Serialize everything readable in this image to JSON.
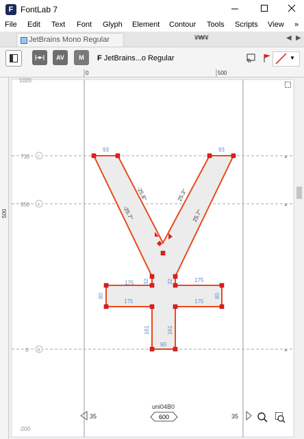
{
  "window": {
    "title": "FontLab 7",
    "app_icon": "F"
  },
  "window_controls": {
    "minimize": "—",
    "maximize": "☐",
    "close": "✕"
  },
  "menu": [
    "File",
    "Edit",
    "Text",
    "Font",
    "Glyph",
    "Element",
    "Contour",
    "Tools",
    "Scripts",
    "View"
  ],
  "menu_overflow": "»",
  "tabs": {
    "active": "JetBrains Mono Regular",
    "second": "¥₩¥",
    "nav_left": "◀",
    "nav_right": "▶"
  },
  "toolbar": {
    "av_label": "AV",
    "m_label": "M",
    "font_prefix": "F",
    "font_name": "JetBrains...o Regular",
    "dropdown": "▼"
  },
  "ruler": {
    "top_0": "0",
    "top_500": "500",
    "left_500": "500"
  },
  "guides": [
    {
      "value": "1020",
      "letter": ""
    },
    {
      "value": "730",
      "letter": "c"
    },
    {
      "value": "550",
      "letter": "x"
    },
    {
      "value": "0",
      "letter": "b"
    },
    {
      "value": "-200",
      "letter": ""
    }
  ],
  "measurements": {
    "top_left": "93",
    "top_right": "93",
    "ang_upper_left": "-25.8°",
    "ang_lower_left": "-25.7°",
    "ang_upper_right": "25.3°",
    "ang_lower_right": "25.7°",
    "bar_top_left": "175",
    "bar_top_right": "175",
    "bar_bottom_left": "175",
    "bar_bottom_right": "175",
    "bar_left_height": "80",
    "bar_right_height": "80",
    "stem_left_upper": "32",
    "stem_right_upper": "32",
    "stem_left_lower": "161",
    "stem_right_lower": "161",
    "bottom_width": "90"
  },
  "glyph": {
    "name": "uni04B0",
    "advance": "600",
    "left_sb": "35",
    "right_sb": "35"
  },
  "colors": {
    "contour": "#e8491c",
    "fill": "#ececec",
    "measure": "#5b8cd0",
    "guide": "#a0a0a0"
  }
}
